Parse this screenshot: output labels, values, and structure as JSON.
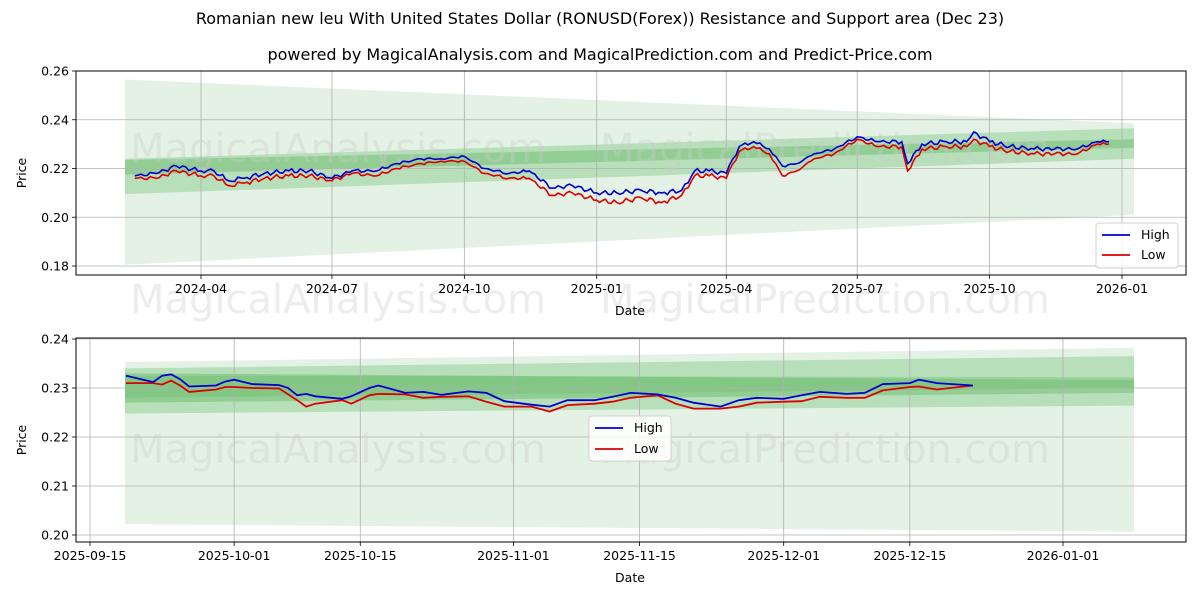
{
  "header": {
    "title": "Romanian new leu With United States Dollar (RONUSD(Forex)) Resistance and Support area (Dec 23)",
    "subtitle": "powered by MagicalAnalysis.com and MagicalPrediction.com and Predict-Price.com"
  },
  "watermarks": [
    "MagicalAnalysis.com",
    "MagicalPrediction.com"
  ],
  "colors": {
    "high": "#0000cc",
    "low": "#dd0000",
    "band_light": "#c8e6c9",
    "band_mid": "#a5d6a7",
    "band_dark": "#66bb6a",
    "grid": "#b0b0b0"
  },
  "chart_data": [
    {
      "type": "line",
      "title": "Long-term (2024-02 to 2026-01)",
      "xlabel": "Date",
      "ylabel": "Price",
      "ylim": [
        0.176,
        0.26
      ],
      "yticks": [
        "0.18",
        "0.20",
        "0.22",
        "0.24",
        "0.26"
      ],
      "xticks": [
        "2024-04",
        "2024-07",
        "2024-10",
        "2025-01",
        "2025-04",
        "2025-07",
        "2025-10",
        "2026-01"
      ],
      "grid": true,
      "legend": {
        "position": "lower right",
        "entries": [
          "High",
          "Low"
        ]
      },
      "x": [
        "2024-02-15",
        "2024-03-01",
        "2024-03-15",
        "2024-04-01",
        "2024-04-10",
        "2024-04-20",
        "2024-05-01",
        "2024-05-15",
        "2024-06-01",
        "2024-06-15",
        "2024-07-01",
        "2024-07-15",
        "2024-08-01",
        "2024-08-15",
        "2024-09-01",
        "2024-09-15",
        "2024-10-01",
        "2024-10-15",
        "2024-11-01",
        "2024-11-15",
        "2024-12-01",
        "2024-12-15",
        "2025-01-01",
        "2025-01-15",
        "2025-02-01",
        "2025-02-15",
        "2025-03-01",
        "2025-03-10",
        "2025-03-20",
        "2025-04-01",
        "2025-04-10",
        "2025-04-20",
        "2025-05-01",
        "2025-05-10",
        "2025-05-20",
        "2025-06-01",
        "2025-06-15",
        "2025-07-01",
        "2025-07-15",
        "2025-08-01",
        "2025-08-05",
        "2025-08-15",
        "2025-09-01",
        "2025-09-15",
        "2025-09-20",
        "2025-10-01",
        "2025-10-15",
        "2025-11-01",
        "2025-11-15",
        "2025-12-01",
        "2025-12-15",
        "2025-12-23"
      ],
      "series": [
        {
          "name": "High",
          "values": [
            0.217,
            0.218,
            0.221,
            0.219,
            0.219,
            0.215,
            0.216,
            0.218,
            0.219,
            0.219,
            0.216,
            0.219,
            0.219,
            0.222,
            0.224,
            0.224,
            0.225,
            0.22,
            0.218,
            0.219,
            0.212,
            0.213,
            0.21,
            0.21,
            0.211,
            0.21,
            0.211,
            0.219,
            0.219,
            0.218,
            0.229,
            0.231,
            0.228,
            0.221,
            0.222,
            0.226,
            0.228,
            0.233,
            0.231,
            0.231,
            0.222,
            0.23,
            0.231,
            0.231,
            0.235,
            0.231,
            0.229,
            0.228,
            0.228,
            0.228,
            0.231,
            0.231
          ]
        },
        {
          "name": "Low",
          "values": [
            0.216,
            0.216,
            0.219,
            0.217,
            0.217,
            0.213,
            0.214,
            0.216,
            0.217,
            0.217,
            0.215,
            0.218,
            0.217,
            0.22,
            0.222,
            0.223,
            0.223,
            0.218,
            0.216,
            0.216,
            0.209,
            0.21,
            0.207,
            0.206,
            0.208,
            0.206,
            0.209,
            0.217,
            0.217,
            0.216,
            0.227,
            0.229,
            0.226,
            0.217,
            0.219,
            0.224,
            0.226,
            0.232,
            0.229,
            0.229,
            0.219,
            0.228,
            0.229,
            0.229,
            0.232,
            0.229,
            0.227,
            0.226,
            0.226,
            0.226,
            0.23,
            0.23
          ]
        }
      ],
      "bands": [
        {
          "name": "outer-upper",
          "start": [
            0.2565,
            0.2445
          ],
          "end": [
            0.2385,
            0.2365
          ]
        },
        {
          "name": "outer-lower",
          "start": [
            0.2445,
            0.1805
          ],
          "end": [
            0.2365,
            0.201
          ]
        },
        {
          "name": "mid",
          "start": [
            0.224,
            0.2095
          ],
          "end": [
            0.2365,
            0.224
          ]
        },
        {
          "name": "core",
          "start": [
            0.2235,
            0.2175
          ],
          "end": [
            0.232,
            0.2285
          ]
        }
      ]
    },
    {
      "type": "line",
      "title": "Short-term (2025-09-15 to 2026-01)",
      "xlabel": "Date",
      "ylabel": "Price",
      "ylim": [
        0.1985,
        0.2403
      ],
      "yticks": [
        "0.20",
        "0.21",
        "0.22",
        "0.23",
        "0.24"
      ],
      "xticks": [
        "2025-09-15",
        "2025-10-01",
        "2025-10-15",
        "2025-11-01",
        "2025-11-15",
        "2025-12-01",
        "2025-12-15",
        "2026-01-01"
      ],
      "grid": true,
      "legend": {
        "position": "center",
        "entries": [
          "High",
          "Low"
        ]
      },
      "x": [
        "2025-09-19",
        "2025-09-22",
        "2025-09-23",
        "2025-09-24",
        "2025-09-25",
        "2025-09-26",
        "2025-09-29",
        "2025-09-30",
        "2025-10-01",
        "2025-10-03",
        "2025-10-06",
        "2025-10-07",
        "2025-10-08",
        "2025-10-09",
        "2025-10-10",
        "2025-10-13",
        "2025-10-14",
        "2025-10-16",
        "2025-10-17",
        "2025-10-20",
        "2025-10-22",
        "2025-10-24",
        "2025-10-27",
        "2025-10-29",
        "2025-10-31",
        "2025-11-03",
        "2025-11-05",
        "2025-11-07",
        "2025-11-10",
        "2025-11-12",
        "2025-11-14",
        "2025-11-17",
        "2025-11-19",
        "2025-11-21",
        "2025-11-24",
        "2025-11-26",
        "2025-11-28",
        "2025-12-01",
        "2025-12-03",
        "2025-12-05",
        "2025-12-08",
        "2025-12-10",
        "2025-12-12",
        "2025-12-15",
        "2025-12-16",
        "2025-12-18",
        "2025-12-22"
      ],
      "series": [
        {
          "name": "High",
          "values": [
            0.2325,
            0.2312,
            0.2325,
            0.2328,
            0.2318,
            0.2303,
            0.2305,
            0.2313,
            0.2317,
            0.2308,
            0.2306,
            0.23,
            0.2285,
            0.2288,
            0.2283,
            0.2278,
            0.2283,
            0.23,
            0.2305,
            0.229,
            0.2292,
            0.2286,
            0.2293,
            0.229,
            0.2273,
            0.2266,
            0.2262,
            0.2275,
            0.2275,
            0.2282,
            0.229,
            0.2287,
            0.228,
            0.227,
            0.2262,
            0.2275,
            0.228,
            0.2278,
            0.2285,
            0.2292,
            0.2288,
            0.229,
            0.2308,
            0.231,
            0.2317,
            0.231,
            0.2305
          ]
        },
        {
          "name": "Low",
          "values": [
            0.231,
            0.231,
            0.2307,
            0.2315,
            0.2305,
            0.2292,
            0.2297,
            0.2302,
            0.2302,
            0.23,
            0.2299,
            0.2287,
            0.2275,
            0.2262,
            0.2268,
            0.2275,
            0.2268,
            0.2285,
            0.2288,
            0.2287,
            0.228,
            0.2282,
            0.2283,
            0.2272,
            0.2262,
            0.2262,
            0.2252,
            0.2265,
            0.2268,
            0.2272,
            0.228,
            0.2285,
            0.2268,
            0.2258,
            0.2258,
            0.2262,
            0.227,
            0.2272,
            0.2273,
            0.2282,
            0.228,
            0.228,
            0.2295,
            0.2302,
            0.2303,
            0.2297,
            0.2305
          ]
        }
      ],
      "bands": [
        {
          "name": "outer-lower",
          "start": [
            0.2213,
            0.2022
          ],
          "end": [
            0.2238,
            0.2007
          ]
        },
        {
          "name": "outer-upper",
          "start": [
            0.2353,
            0.2213
          ],
          "end": [
            0.2382,
            0.2238
          ]
        },
        {
          "name": "mid",
          "start": [
            0.234,
            0.2248
          ],
          "end": [
            0.2365,
            0.2264
          ]
        },
        {
          "name": "core",
          "start": [
            0.233,
            0.227
          ],
          "end": [
            0.2316,
            0.229
          ]
        }
      ]
    }
  ]
}
